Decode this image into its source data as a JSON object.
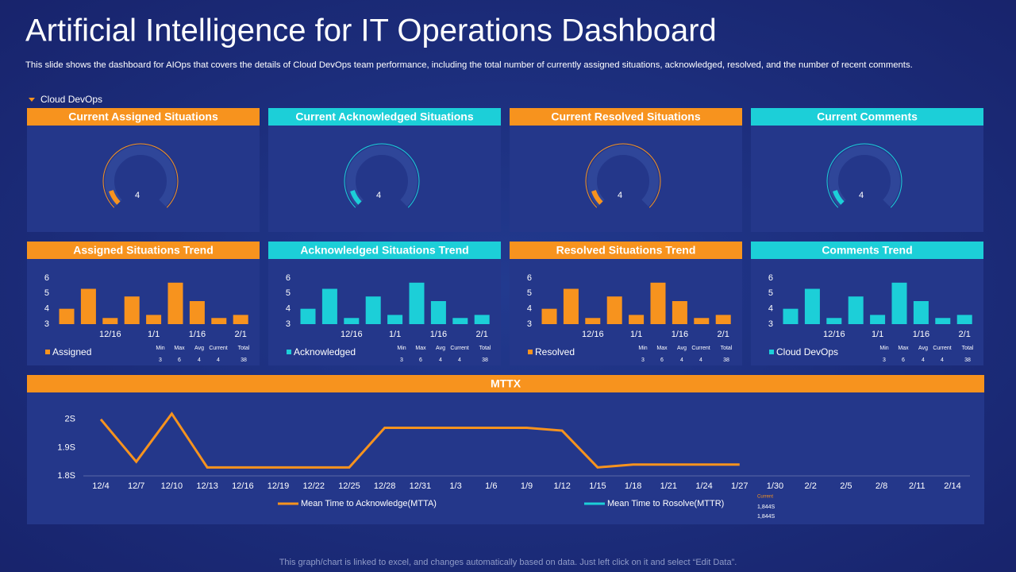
{
  "header": {
    "title": "Artificial Intelligence for IT Operations Dashboard",
    "subtitle": "This slide shows the dashboard for AIOps that covers the details of Cloud DevOps team performance, including the total number of currently assigned situations, acknowledged, resolved, and the number of recent comments."
  },
  "filter": "Cloud DevOps",
  "gauge_range": [
    0,
    40
  ],
  "gauges": [
    {
      "title": "Current Assigned Situations",
      "value": 4,
      "color": "#f7931e"
    },
    {
      "title": "Current Acknowledged Situations",
      "value": 4,
      "color": "#1ccfd8"
    },
    {
      "title": "Current Resolved Situations",
      "value": 4,
      "color": "#f7931e"
    },
    {
      "title": "Current Comments",
      "value": 4,
      "color": "#1ccfd8"
    }
  ],
  "chart_data": [
    {
      "type": "bar",
      "title": "Assigned Situations Trend",
      "header_color": "#f7931e",
      "categories": [
        null,
        null,
        "12/16",
        null,
        "1/1",
        null,
        "1/16",
        null,
        "2/1"
      ],
      "series": [
        {
          "name": "Assigned",
          "color": "#f7931e",
          "values": [
            4.0,
            5.3,
            3.4,
            4.8,
            3.6,
            5.7,
            4.5,
            3.4,
            3.6
          ]
        }
      ],
      "ylim": [
        3,
        6
      ],
      "yticks": [
        3,
        4,
        5,
        6
      ],
      "stats": {
        "labels": [
          "Min",
          "Max",
          "Avg",
          "Current",
          "Total"
        ],
        "values": [
          3,
          6,
          4,
          4,
          38
        ]
      }
    },
    {
      "type": "bar",
      "title": "Acknowledged Situations Trend",
      "header_color": "#1ccfd8",
      "categories": [
        null,
        null,
        "12/16",
        null,
        "1/1",
        null,
        "1/16",
        null,
        "2/1"
      ],
      "series": [
        {
          "name": "Acknowledged",
          "color": "#1ccfd8",
          "values": [
            4.0,
            5.3,
            3.4,
            4.8,
            3.6,
            5.7,
            4.5,
            3.4,
            3.6
          ]
        }
      ],
      "ylim": [
        3,
        6
      ],
      "yticks": [
        3,
        4,
        5,
        6
      ],
      "stats": {
        "labels": [
          "Min",
          "Max",
          "Avg",
          "Current",
          "Total"
        ],
        "values": [
          3,
          6,
          4,
          4,
          38
        ]
      }
    },
    {
      "type": "bar",
      "title": "Resolved Situations Trend",
      "header_color": "#f7931e",
      "categories": [
        null,
        null,
        "12/16",
        null,
        "1/1",
        null,
        "1/16",
        null,
        "2/1"
      ],
      "series": [
        {
          "name": "Resolved",
          "color": "#f7931e",
          "values": [
            4.0,
            5.3,
            3.4,
            4.8,
            3.6,
            5.7,
            4.5,
            3.4,
            3.6
          ]
        }
      ],
      "ylim": [
        3,
        6
      ],
      "yticks": [
        3,
        4,
        5,
        6
      ],
      "stats": {
        "labels": [
          "Min",
          "Max",
          "Avg",
          "Current",
          "Total"
        ],
        "values": [
          3,
          6,
          4,
          4,
          38
        ]
      }
    },
    {
      "type": "bar",
      "title": "Comments Trend",
      "header_color": "#1ccfd8",
      "categories": [
        null,
        null,
        "12/16",
        null,
        "1/1",
        null,
        "1/16",
        null,
        "2/1"
      ],
      "series": [
        {
          "name": "Cloud DevOps",
          "color": "#1ccfd8",
          "values": [
            4.0,
            5.3,
            3.4,
            4.8,
            3.6,
            5.7,
            4.5,
            3.4,
            3.6
          ]
        }
      ],
      "ylim": [
        3,
        6
      ],
      "yticks": [
        3,
        4,
        5,
        6
      ],
      "stats": {
        "labels": [
          "Min",
          "Max",
          "Avg",
          "Current",
          "Total"
        ],
        "values": [
          3,
          6,
          4,
          4,
          38
        ]
      }
    },
    {
      "type": "line",
      "title": "MTTX",
      "header_color": "#f7931e",
      "categories": [
        "12/4",
        "12/7",
        "12/10",
        "12/13",
        "12/16",
        "12/19",
        "12/22",
        "12/25",
        "12/28",
        "12/31",
        "1/3",
        "1/6",
        "1/9",
        "1/12",
        "1/15",
        "1/18",
        "1/21",
        "1/24",
        "1/27",
        "1/30",
        "2/2",
        "2/5",
        "2/8",
        "2/11",
        "2/14"
      ],
      "series": [
        {
          "name": "Mean Time to Acknowledge(MTTA)",
          "color": "#f7931e",
          "values": [
            2.0,
            1.85,
            2.02,
            1.83,
            1.83,
            1.83,
            1.83,
            1.83,
            1.97,
            1.97,
            1.97,
            1.97,
            1.97,
            1.96,
            1.83,
            1.84,
            1.84,
            1.84,
            1.84,
            null,
            null,
            null,
            null,
            null,
            null
          ]
        },
        {
          "name": "Mean Time to Rosolve(MTTR)",
          "color": "#1ccfd8",
          "values": [
            null,
            null,
            null,
            null,
            null,
            null,
            null,
            null,
            null,
            null,
            null,
            null,
            null,
            null,
            null,
            null,
            null,
            null,
            null,
            null,
            null,
            null,
            null,
            null,
            null
          ]
        }
      ],
      "ylim": [
        1.8,
        2.05
      ],
      "yticks": [
        {
          "value": 1.8,
          "label": "1.8S"
        },
        {
          "value": 1.9,
          "label": "1.9S"
        },
        {
          "value": 2,
          "label": "2S"
        }
      ],
      "current": {
        "label": "Current",
        "values": [
          "1,844S",
          "1,844S"
        ]
      }
    }
  ],
  "footer": "This graph/chart is linked to excel, and changes automatically based on data. Just left click on it and select “Edit Data”."
}
